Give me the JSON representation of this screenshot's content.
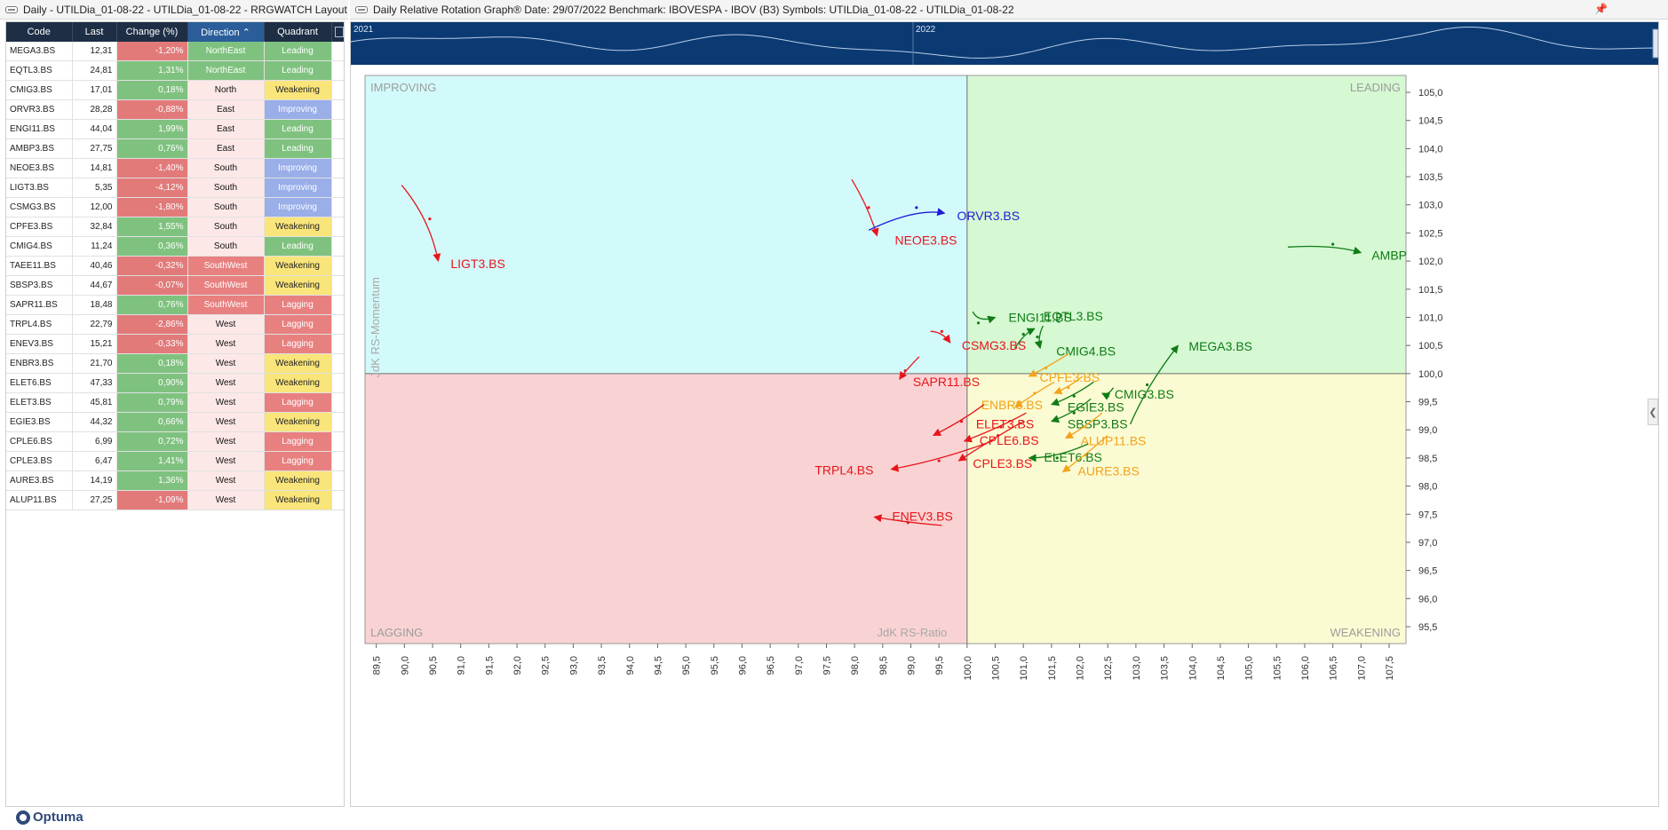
{
  "left_window": {
    "title": "Daily - UTILDia_01-08-22 - UTILDia_01-08-22 - RRGWATCH Layout"
  },
  "right_window": {
    "title": "Daily Relative Rotation Graph®    Date: 29/07/2022  Benchmark: IBOVESPA - IBOV (B3)  Symbols: UTILDia_01-08-22 - UTILDia_01-08-22",
    "pin_icon": "pin-icon"
  },
  "table": {
    "headers": {
      "code": "Code",
      "last": "Last",
      "change": "Change (%)",
      "direction": "Direction",
      "quadrant": "Quadrant"
    },
    "sort_indicator": "⌃",
    "rows": [
      {
        "code": "MEGA3.BS",
        "last": "12,31",
        "change": "-1,20%",
        "direction": "NorthEast",
        "quadrant": "Leading"
      },
      {
        "code": "EQTL3.BS",
        "last": "24,81",
        "change": "1,31%",
        "direction": "NorthEast",
        "quadrant": "Leading"
      },
      {
        "code": "CMIG3.BS",
        "last": "17,01",
        "change": "0,18%",
        "direction": "North",
        "quadrant": "Weakening"
      },
      {
        "code": "ORVR3.BS",
        "last": "28,28",
        "change": "-0,88%",
        "direction": "East",
        "quadrant": "Improving"
      },
      {
        "code": "ENGI11.BS",
        "last": "44,04",
        "change": "1,99%",
        "direction": "East",
        "quadrant": "Leading"
      },
      {
        "code": "AMBP3.BS",
        "last": "27,75",
        "change": "0,76%",
        "direction": "East",
        "quadrant": "Leading"
      },
      {
        "code": "NEOE3.BS",
        "last": "14,81",
        "change": "-1,40%",
        "direction": "South",
        "quadrant": "Improving"
      },
      {
        "code": "LIGT3.BS",
        "last": "5,35",
        "change": "-4,12%",
        "direction": "South",
        "quadrant": "Improving"
      },
      {
        "code": "CSMG3.BS",
        "last": "12,00",
        "change": "-1,80%",
        "direction": "South",
        "quadrant": "Improving"
      },
      {
        "code": "CPFE3.BS",
        "last": "32,84",
        "change": "1,55%",
        "direction": "South",
        "quadrant": "Weakening"
      },
      {
        "code": "CMIG4.BS",
        "last": "11,24",
        "change": "0,36%",
        "direction": "South",
        "quadrant": "Leading"
      },
      {
        "code": "TAEE11.BS",
        "last": "40,46",
        "change": "-0,32%",
        "direction": "SouthWest",
        "quadrant": "Weakening"
      },
      {
        "code": "SBSP3.BS",
        "last": "44,67",
        "change": "-0,07%",
        "direction": "SouthWest",
        "quadrant": "Weakening"
      },
      {
        "code": "SAPR11.BS",
        "last": "18,48",
        "change": "0,76%",
        "direction": "SouthWest",
        "quadrant": "Lagging"
      },
      {
        "code": "TRPL4.BS",
        "last": "22,79",
        "change": "-2,86%",
        "direction": "West",
        "quadrant": "Lagging"
      },
      {
        "code": "ENEV3.BS",
        "last": "15,21",
        "change": "-0,33%",
        "direction": "West",
        "quadrant": "Lagging"
      },
      {
        "code": "ENBR3.BS",
        "last": "21,70",
        "change": "0,18%",
        "direction": "West",
        "quadrant": "Weakening"
      },
      {
        "code": "ELET6.BS",
        "last": "47,33",
        "change": "0,90%",
        "direction": "West",
        "quadrant": "Weakening"
      },
      {
        "code": "ELET3.BS",
        "last": "45,81",
        "change": "0,79%",
        "direction": "West",
        "quadrant": "Lagging"
      },
      {
        "code": "EGIE3.BS",
        "last": "44,32",
        "change": "0,66%",
        "direction": "West",
        "quadrant": "Weakening"
      },
      {
        "code": "CPLE6.BS",
        "last": "6,99",
        "change": "0,72%",
        "direction": "West",
        "quadrant": "Lagging"
      },
      {
        "code": "CPLE3.BS",
        "last": "6,47",
        "change": "1,41%",
        "direction": "West",
        "quadrant": "Lagging"
      },
      {
        "code": "AURE3.BS",
        "last": "14,19",
        "change": "1,36%",
        "direction": "West",
        "quadrant": "Weakening"
      },
      {
        "code": "ALUP11.BS",
        "last": "27,25",
        "change": "-1,09%",
        "direction": "West",
        "quadrant": "Weakening"
      }
    ]
  },
  "logo": {
    "text": "Optuma"
  },
  "navigator": {
    "labels": [
      "2021",
      "2022"
    ]
  },
  "chart_data": {
    "type": "scatter",
    "title": "Daily Relative Rotation Graph®",
    "xlabel": "JdK RS-Ratio",
    "ylabel": "JdK RS-Momentum",
    "xlim": [
      89.3,
      107.8
    ],
    "ylim": [
      95.2,
      105.3
    ],
    "center": [
      100.0,
      100.0
    ],
    "quadrants": {
      "improving": "IMPROVING",
      "leading": "LEADING",
      "lagging": "LAGGING",
      "weakening": "WEAKENING"
    },
    "quadrant_colors": {
      "improving": "#d3fafb",
      "leading": "#d6f8d3",
      "lagging": "#f9d3d3",
      "weakening": "#fbfbd3"
    },
    "status_colors": {
      "red": "#e8151b",
      "green": "#0f7c15",
      "blue": "#1d1cd8",
      "orange": "#f3a21a"
    },
    "x_ticks": [
      "89,5",
      "90,0",
      "90,5",
      "91,0",
      "91,5",
      "92,0",
      "92,5",
      "93,0",
      "93,5",
      "94,0",
      "94,5",
      "95,0",
      "95,5",
      "96,0",
      "96,5",
      "97,0",
      "97,5",
      "98,0",
      "98,5",
      "99,0",
      "99,5",
      "100,0",
      "100,5",
      "101,0",
      "101,5",
      "102,0",
      "102,5",
      "103,0",
      "103,5",
      "104,0",
      "104,5",
      "105,0",
      "105,5",
      "106,0",
      "106,5",
      "107,0",
      "107,5"
    ],
    "y_ticks": [
      "95,5",
      "96,0",
      "96,5",
      "97,0",
      "97,5",
      "98,0",
      "98,5",
      "99,0",
      "99,5",
      "100,0",
      "100,5",
      "101,0",
      "101,5",
      "102,0",
      "102,5",
      "103,0",
      "103,5",
      "104,0",
      "104,5",
      "105,0"
    ],
    "series": [
      {
        "name": "LIGT3.BS",
        "color": "red",
        "points": [
          [
            89.95,
            103.35
          ],
          [
            90.45,
            102.75
          ],
          [
            90.6,
            102.0
          ]
        ]
      },
      {
        "name": "NEOE3.BS",
        "color": "red",
        "points": [
          [
            97.95,
            103.45
          ],
          [
            98.25,
            102.95
          ],
          [
            98.4,
            102.45
          ]
        ]
      },
      {
        "name": "ORVR3.BS",
        "color": "blue",
        "points": [
          [
            98.25,
            102.55
          ],
          [
            99.1,
            102.95
          ],
          [
            99.6,
            102.85
          ]
        ]
      },
      {
        "name": "AMBP3.BS",
        "label": "AMBP",
        "color": "green",
        "points": [
          [
            105.7,
            102.25
          ],
          [
            106.5,
            102.3
          ],
          [
            107.0,
            102.15
          ]
        ]
      },
      {
        "name": "ENGI11.BS",
        "color": "green",
        "points": [
          [
            100.1,
            101.1
          ],
          [
            100.2,
            100.9
          ],
          [
            100.5,
            101.0
          ]
        ]
      },
      {
        "name": "EQTL3.BS",
        "color": "green",
        "points": [
          [
            100.85,
            100.45
          ],
          [
            101.0,
            100.7
          ],
          [
            101.2,
            100.8
          ]
        ]
      },
      {
        "name": "CMIG4.BS",
        "color": "green",
        "points": [
          [
            101.35,
            100.85
          ],
          [
            101.25,
            100.65
          ],
          [
            101.3,
            100.45
          ]
        ]
      },
      {
        "name": "CSMG3.BS",
        "color": "red",
        "points": [
          [
            99.35,
            100.75
          ],
          [
            99.55,
            100.75
          ],
          [
            99.7,
            100.55
          ]
        ]
      },
      {
        "name": "MEGA3.BS",
        "color": "green",
        "points": [
          [
            102.9,
            99.1
          ],
          [
            103.2,
            99.8
          ],
          [
            103.75,
            100.5
          ]
        ]
      },
      {
        "name": "SAPR11.BS",
        "color": "red",
        "points": [
          [
            99.15,
            100.3
          ],
          [
            98.9,
            100.05
          ],
          [
            98.8,
            99.9
          ]
        ]
      },
      {
        "name": "CPFE3.BS",
        "color": "orange",
        "points": [
          [
            101.8,
            100.35
          ],
          [
            101.4,
            100.1
          ],
          [
            101.1,
            99.95
          ]
        ]
      },
      {
        "name": "ENBR3.BS",
        "color": "orange",
        "points": [
          [
            101.55,
            99.85
          ],
          [
            101.2,
            99.65
          ],
          [
            100.85,
            99.4
          ]
        ]
      },
      {
        "name": "CMIG3.BS",
        "color": "green",
        "points": [
          [
            102.6,
            99.75
          ],
          [
            102.5,
            99.6
          ],
          [
            102.4,
            99.65
          ]
        ]
      },
      {
        "name": "EGIE3.BS",
        "color": "green",
        "points": [
          [
            102.25,
            99.85
          ],
          [
            101.9,
            99.6
          ],
          [
            101.5,
            99.45
          ]
        ]
      },
      {
        "name": "SBSP3.BS",
        "color": "green",
        "points": [
          [
            102.2,
            99.55
          ],
          [
            101.9,
            99.3
          ],
          [
            101.5,
            99.15
          ]
        ]
      },
      {
        "name": "TAEE11.BS",
        "label": "",
        "color": "orange",
        "points": [
          [
            102.05,
            99.95
          ],
          [
            101.8,
            99.75
          ],
          [
            101.55,
            99.65
          ]
        ]
      },
      {
        "name": "ELET3.BS",
        "color": "red",
        "points": [
          [
            100.3,
            99.45
          ],
          [
            99.9,
            99.15
          ],
          [
            99.4,
            98.9
          ]
        ]
      },
      {
        "name": "CPLE6.BS",
        "color": "red",
        "points": [
          [
            101.05,
            99.3
          ],
          [
            100.6,
            99.05
          ],
          [
            99.95,
            98.8
          ]
        ]
      },
      {
        "name": "ALUP11.BS",
        "color": "orange",
        "points": [
          [
            102.4,
            99.3
          ],
          [
            102.1,
            99.05
          ],
          [
            101.75,
            98.85
          ]
        ]
      },
      {
        "name": "CPLE3.BS",
        "color": "red",
        "points": [
          [
            101.0,
            99.15
          ],
          [
            100.55,
            98.9
          ],
          [
            99.85,
            98.45
          ]
        ]
      },
      {
        "name": "ELET6.BS",
        "color": "green",
        "points": [
          [
            102.15,
            98.75
          ],
          [
            101.6,
            98.5
          ],
          [
            101.1,
            98.5
          ]
        ]
      },
      {
        "name": "AURE3.BS",
        "color": "orange",
        "points": [
          [
            102.5,
            98.9
          ],
          [
            102.1,
            98.55
          ],
          [
            101.7,
            98.25
          ]
        ]
      },
      {
        "name": "TRPL4.BS",
        "color": "red",
        "points": [
          [
            100.45,
            98.8
          ],
          [
            99.5,
            98.45
          ],
          [
            98.65,
            98.3
          ]
        ]
      },
      {
        "name": "ENEV3.BS",
        "color": "red",
        "points": [
          [
            99.55,
            97.3
          ],
          [
            98.95,
            97.35
          ],
          [
            98.35,
            97.45
          ]
        ]
      }
    ],
    "label_offsets": {
      "LIGT3.BS": [
        14,
        8
      ],
      "NEOE3.BS": [
        20,
        10
      ],
      "ORVR3.BS": [
        14,
        8
      ],
      "AMBP3.BS": [
        12,
        8
      ],
      "ENGI11.BS": [
        15,
        5
      ],
      "EQTL3.BS": [
        10,
        -9
      ],
      "CMIG4.BS": [
        18,
        8
      ],
      "CSMG3.BS": [
        13,
        8
      ],
      "MEGA3.BS": [
        12,
        6
      ],
      "SAPR11.BS": [
        15,
        8
      ],
      "CPFE3.BS": [
        12,
        6
      ],
      "ENBR3.BS": [
        -38,
        2
      ],
      "CMIG3.BS": [
        14,
        6
      ],
      "EGIE3.BS": [
        18,
        8
      ],
      "SBSP3.BS": [
        18,
        8
      ],
      "ELET3.BS": [
        48,
        -8
      ],
      "CPLE6.BS": [
        17,
        4
      ],
      "ALUP11.BS": [
        17,
        8
      ],
      "CPLE3.BS": [
        16,
        8
      ],
      "ELET6.BS": [
        17,
        4
      ],
      "AURE3.BS": [
        17,
        4
      ],
      "TRPL4.BS": [
        -86,
        6
      ],
      "ENEV3.BS": [
        20,
        4
      ]
    }
  }
}
